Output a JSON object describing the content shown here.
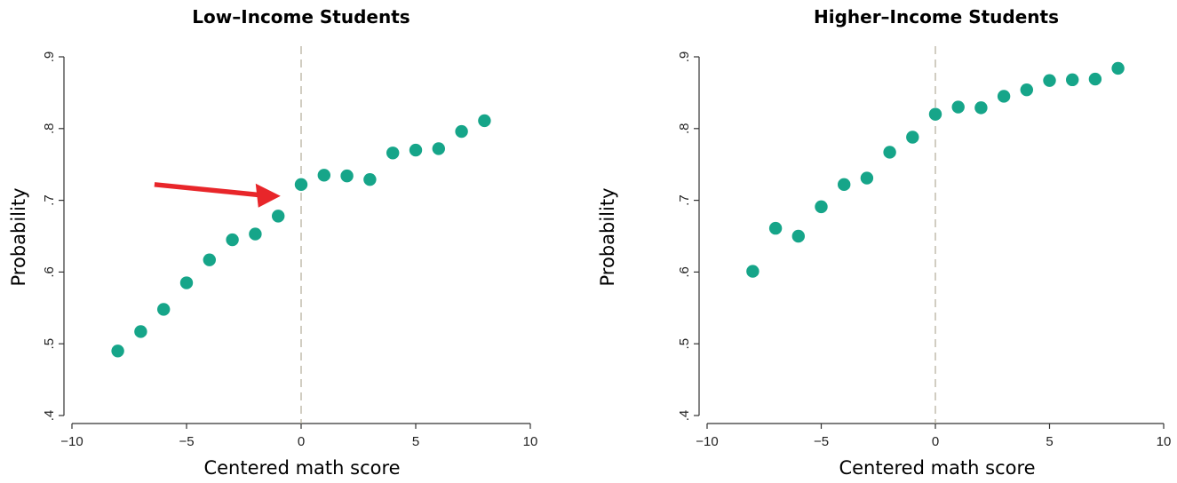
{
  "colors": {
    "title": "#1a6fa3",
    "marker": "#16a589",
    "axis": "#333333",
    "cutoff_line": "#b8b2a0",
    "arrow": "#e8262a"
  },
  "chart_data": [
    {
      "type": "scatter",
      "title": "Low–Income Students",
      "xlabel": "Centered math score",
      "ylabel": "Probability",
      "xlim": [
        -10,
        10
      ],
      "ylim": [
        0.4,
        0.9
      ],
      "xticks": [
        -10,
        -5,
        0,
        5,
        10
      ],
      "xtick_labels": [
        "−10",
        "−5",
        "0",
        "5",
        "10"
      ],
      "yticks": [
        0.4,
        0.5,
        0.6,
        0.7,
        0.8,
        0.9
      ],
      "ytick_labels": [
        ".4",
        ".5",
        ".6",
        ".7",
        ".8",
        ".9"
      ],
      "cutoff_x": 0,
      "grid": false,
      "annotation": "red arrow pointing at the jump at the cutoff (x = 0)",
      "x": [
        -8,
        -7,
        -6,
        -5,
        -4,
        -3,
        -2,
        -1,
        0,
        1,
        2,
        3,
        4,
        5,
        6,
        7,
        8
      ],
      "y": [
        0.49,
        0.517,
        0.548,
        0.585,
        0.617,
        0.645,
        0.653,
        0.678,
        0.722,
        0.735,
        0.734,
        0.729,
        0.766,
        0.77,
        0.772,
        0.796,
        0.811
      ]
    },
    {
      "type": "scatter",
      "title": "Higher–Income Students",
      "xlabel": "Centered math score",
      "ylabel": "Probability",
      "xlim": [
        -10,
        10
      ],
      "ylim": [
        0.4,
        0.9
      ],
      "xticks": [
        -10,
        -5,
        0,
        5,
        10
      ],
      "xtick_labels": [
        "−10",
        "−5",
        "0",
        "5",
        "10"
      ],
      "yticks": [
        0.4,
        0.5,
        0.6,
        0.7,
        0.8,
        0.9
      ],
      "ytick_labels": [
        ".4",
        ".5",
        ".6",
        ".7",
        ".8",
        ".9"
      ],
      "cutoff_x": 0,
      "grid": false,
      "x": [
        -8,
        -7,
        -6,
        -5,
        -4,
        -3,
        -2,
        -1,
        0,
        1,
        2,
        3,
        4,
        5,
        6,
        7,
        8
      ],
      "y": [
        0.601,
        0.661,
        0.65,
        0.691,
        0.722,
        0.731,
        0.767,
        0.788,
        0.82,
        0.83,
        0.829,
        0.845,
        0.854,
        0.867,
        0.868,
        0.869,
        0.884
      ]
    }
  ]
}
